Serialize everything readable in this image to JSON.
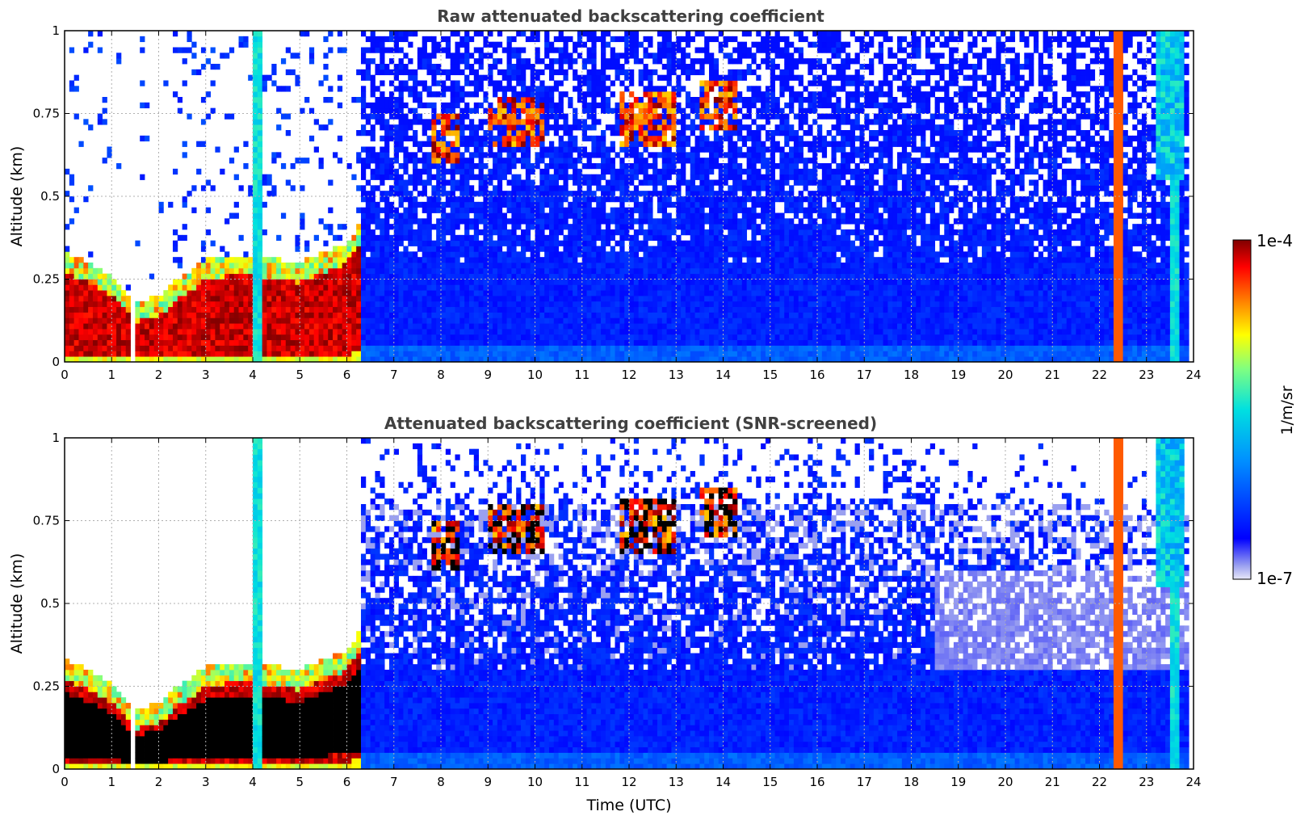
{
  "chart_data": [
    {
      "type": "heatmap",
      "title": "Raw attenuated backscattering coefficient",
      "xlabel": "",
      "ylabel": "Altitude (km)",
      "xlim": [
        0,
        24
      ],
      "ylim": [
        0,
        1
      ],
      "x_ticks": [
        "0",
        "1",
        "2",
        "3",
        "4",
        "5",
        "6",
        "7",
        "8",
        "9",
        "10",
        "11",
        "12",
        "13",
        "14",
        "15",
        "16",
        "17",
        "18",
        "19",
        "20",
        "21",
        "22",
        "23",
        "24"
      ],
      "y_ticks": [
        "0",
        "0.25",
        "0.5",
        "0.75",
        "1"
      ],
      "grid": true,
      "colormap": "jet",
      "features": {
        "boundary_layer_top_km": [
          {
            "t": 0,
            "h": 0.27
          },
          {
            "t": 0.5,
            "h": 0.24
          },
          {
            "t": 1,
            "h": 0.2
          },
          {
            "t": 1.5,
            "h": 0.12
          },
          {
            "t": 2,
            "h": 0.14
          },
          {
            "t": 2.5,
            "h": 0.2
          },
          {
            "t": 3,
            "h": 0.25
          },
          {
            "t": 3.5,
            "h": 0.26
          },
          {
            "t": 4,
            "h": 0.26
          },
          {
            "t": 4.5,
            "h": 0.25
          },
          {
            "t": 5,
            "h": 0.24
          },
          {
            "t": 5.5,
            "h": 0.27
          },
          {
            "t": 6,
            "h": 0.3
          },
          {
            "t": 6.5,
            "h": 0.4
          },
          {
            "t": 7,
            "h": 0.5
          }
        ],
        "cloud_layers": [
          {
            "t_start": 7.8,
            "t_end": 8.4,
            "h_low": 0.6,
            "h_high": 0.75
          },
          {
            "t_start": 9.0,
            "t_end": 10.2,
            "h_low": 0.65,
            "h_high": 0.8
          },
          {
            "t_start": 11.8,
            "t_end": 13.0,
            "h_low": 0.65,
            "h_high": 0.82
          },
          {
            "t_start": 13.5,
            "t_end": 14.3,
            "h_low": 0.7,
            "h_high": 0.85
          }
        ],
        "vertical_streaks_utc": [
          4.1,
          22.4,
          23.6
        ],
        "data_gap_utc": [
          1.45,
          1.55
        ]
      }
    },
    {
      "type": "heatmap",
      "title": "Attenuated backscattering coefficient (SNR-screened)",
      "xlabel": "Time (UTC)",
      "ylabel": "Altitude (km)",
      "xlim": [
        0,
        24
      ],
      "ylim": [
        0,
        1
      ],
      "x_ticks": [
        "0",
        "1",
        "2",
        "3",
        "4",
        "5",
        "6",
        "7",
        "8",
        "9",
        "10",
        "11",
        "12",
        "13",
        "14",
        "15",
        "16",
        "17",
        "18",
        "19",
        "20",
        "21",
        "22",
        "23",
        "24"
      ],
      "y_ticks": [
        "0",
        "0.25",
        "0.5",
        "0.75",
        "1"
      ],
      "grid": true,
      "colormap": "jet",
      "screened": true
    }
  ],
  "colorbar": {
    "label": "1/m/sr",
    "max_label": "1e-4",
    "min_label": "1e-7",
    "min_value": 1e-07,
    "max_value": 0.0001,
    "scale": "log"
  },
  "colors": {
    "background": "#ffffff",
    "title": "#404040",
    "grid": "#b0b0b0",
    "saturated": "#000000"
  }
}
